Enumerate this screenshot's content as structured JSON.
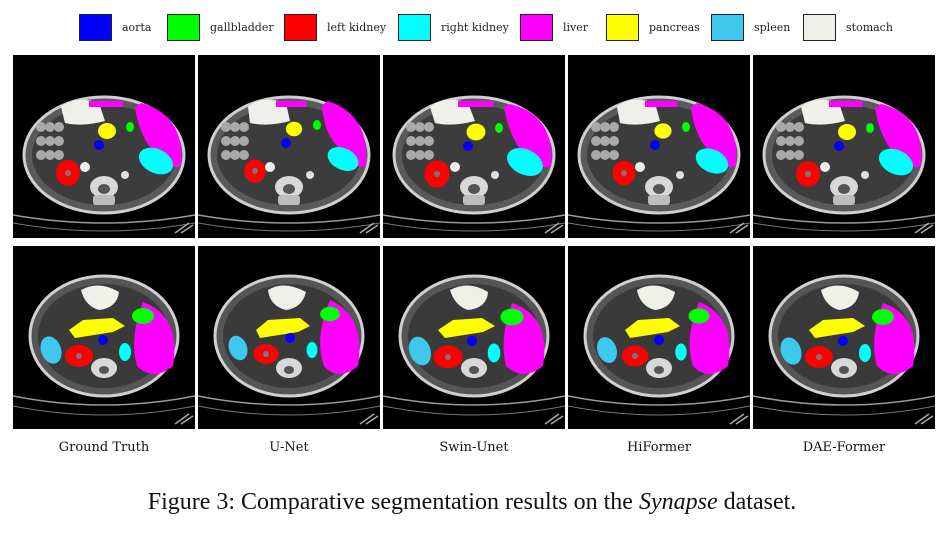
{
  "legend": {
    "items": [
      {
        "label": "aorta",
        "color": "#0000ff"
      },
      {
        "label": "gallbladder",
        "color": "#00ff00"
      },
      {
        "label": "left kidney",
        "color": "#ff0000"
      },
      {
        "label": "right kidney",
        "color": "#00ffff"
      },
      {
        "label": "liver",
        "color": "#ff00ff"
      },
      {
        "label": "pancreas",
        "color": "#ffff00"
      },
      {
        "label": "spleen",
        "color": "#3ec8ee"
      },
      {
        "label": "stomach",
        "color": "#f0f0ea"
      }
    ]
  },
  "columns": [
    {
      "label": "Ground Truth"
    },
    {
      "label": "U-Net"
    },
    {
      "label": "Swin-Unet"
    },
    {
      "label": "HiFormer"
    },
    {
      "label": "DAE-Former"
    }
  ],
  "caption": {
    "prefix": "Figure 3: Comparative segmentation results on the ",
    "emphasis": "Synapse",
    "suffix": " dataset."
  }
}
